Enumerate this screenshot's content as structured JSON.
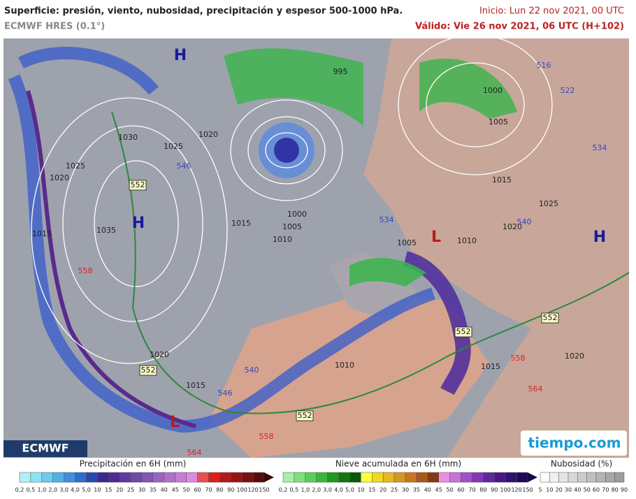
{
  "header": {
    "title": "Superficie: presión, viento, nubosidad, precipitación y espesor 500-1000 hPa.",
    "model": "ECMWF HRES (0.1°)",
    "init": "Inicio: Lun 22 nov 2021, 00 UTC",
    "valid": "Válido: Vie 26 nov 2021, 06 UTC (H+102)"
  },
  "map": {
    "pressure_labels": [
      "1030",
      "1025",
      "1020",
      "1035",
      "1015",
      "1025",
      "1020",
      "995",
      "1000",
      "1005",
      "1010",
      "1015",
      "1020",
      "1015",
      "1010",
      "1005",
      "1010",
      "1015",
      "1020",
      "1025",
      "1005",
      "1000",
      "1015",
      "1020"
    ],
    "thickness_labels": [
      "552",
      "552",
      "552",
      "552",
      "552",
      "546",
      "546",
      "540",
      "534",
      "540",
      "534",
      "522",
      "516",
      "558",
      "558",
      "558",
      "564",
      "564"
    ],
    "centers": [
      "H",
      "H",
      "H",
      "L",
      "L"
    ]
  },
  "logos": {
    "left": "ECMWF",
    "right": "tiempo.com"
  },
  "legends": [
    {
      "title": "Precipitación en 6H (mm)",
      "ticks": [
        "0,2",
        "0,5",
        "1,0",
        "2,0",
        "3,0",
        "4,0",
        "5,0",
        "10",
        "15",
        "20",
        "25",
        "30",
        "35",
        "40",
        "45",
        "50",
        "60",
        "70",
        "80",
        "90",
        "100",
        "120",
        "150"
      ]
    },
    {
      "title": "Nieve acumulada en 6H (mm)",
      "ticks": [
        "0,2",
        "0,5",
        "1,0",
        "2,0",
        "3,0",
        "4,0",
        "5,0",
        "10",
        "15",
        "20",
        "25",
        "30",
        "35",
        "40",
        "45",
        "50",
        "60",
        "70",
        "80",
        "90",
        "100",
        "120",
        "150"
      ]
    },
    {
      "title": "Nubosidad (%)",
      "ticks": [
        "5",
        "10",
        "20",
        "30",
        "40",
        "50",
        "60",
        "70",
        "80",
        "90"
      ]
    }
  ]
}
